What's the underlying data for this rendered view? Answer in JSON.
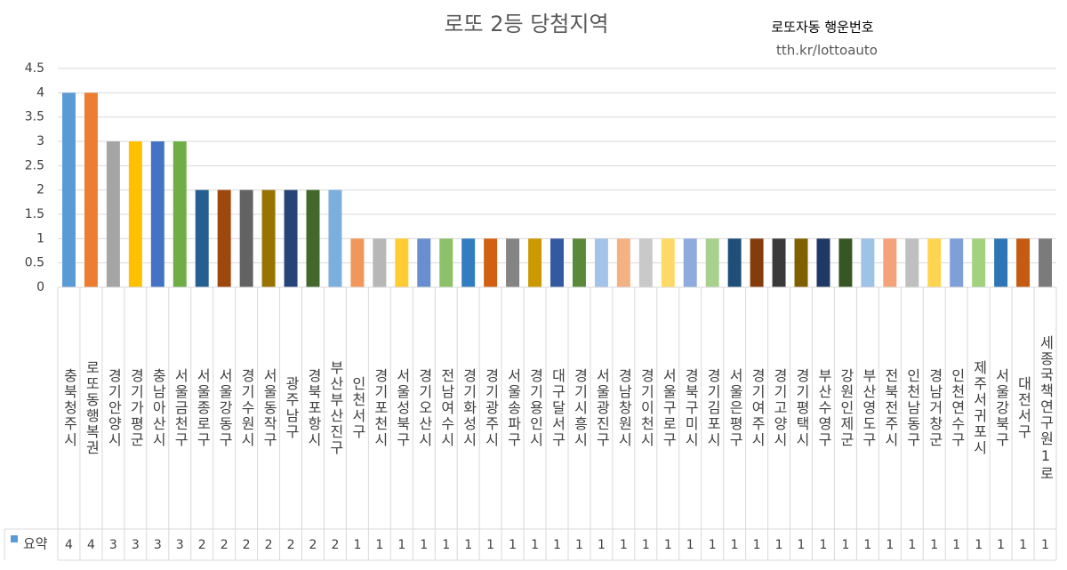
{
  "chart_data": {
    "type": "bar",
    "title": "로또 2등 당첨지역",
    "annotations": [
      "로또자동 행운번호",
      "tth.kr/lottoauto"
    ],
    "categories": [
      "충북청주시",
      "로또동행복권",
      "경기안양시",
      "경기가평군",
      "충남아산시",
      "서울금천구",
      "서울종로구",
      "서울강동구",
      "경기수원시",
      "서울동작구",
      "광주남구",
      "경북포항시",
      "부산부산진구",
      "인천서구",
      "경기포천시",
      "서울성북구",
      "경기오산시",
      "전남여수시",
      "경기화성시",
      "경기광주시",
      "서울송파구",
      "경기용인시",
      "대구달서구",
      "경기시흥시",
      "서울광진구",
      "경남창원시",
      "경기이천시",
      "서울구로구",
      "경북구미시",
      "경기김포시",
      "서울은평구",
      "경기여주시",
      "경기고양시",
      "경기평택시",
      "부산수영구",
      "강원인제군",
      "부산영도구",
      "전북전주시",
      "인천남동구",
      "경남거창군",
      "인천연수구",
      "제주서귀포시",
      "서울강북구",
      "대전서구",
      "세종국책연구원1로"
    ],
    "series": [
      {
        "name": "요약",
        "color": "#5b9bd5",
        "values": [
          4,
          4,
          3,
          3,
          3,
          3,
          2,
          2,
          2,
          2,
          2,
          2,
          2,
          1,
          1,
          1,
          1,
          1,
          1,
          1,
          1,
          1,
          1,
          1,
          1,
          1,
          1,
          1,
          1,
          1,
          1,
          1,
          1,
          1,
          1,
          1,
          1,
          1,
          1,
          1,
          1,
          1,
          1,
          1,
          1
        ]
      }
    ],
    "colors": [
      "#5b9bd5",
      "#ed7d31",
      "#a5a5a5",
      "#ffc000",
      "#4472c4",
      "#70ad47",
      "#255e91",
      "#9e480e",
      "#636363",
      "#997300",
      "#264478",
      "#43682b",
      "#7cafdd",
      "#f1975a",
      "#b7b7b7",
      "#ffcd33",
      "#698ed0",
      "#8cc168",
      "#327dc2",
      "#d26012",
      "#848484",
      "#cc9a00",
      "#335aa1",
      "#5a8a39",
      "#a3c4e8",
      "#f4b183",
      "#c9c9c9",
      "#ffd966",
      "#8faadc",
      "#a9d18e",
      "#1f4e79",
      "#843c0c",
      "#3a3a3a",
      "#7f6000",
      "#203864",
      "#375623",
      "#9dc3e6",
      "#f4a27a",
      "#bfbfbf",
      "#ffd54f",
      "#7f9fd9",
      "#a2d17f",
      "#2e75b6",
      "#c55a11",
      "#7b7b7b"
    ],
    "ylim": [
      0,
      4.5
    ],
    "yticks": [
      0,
      0.5,
      1,
      1.5,
      2,
      2.5,
      3,
      3.5,
      4,
      4.5
    ],
    "grid": true,
    "data_table": true
  }
}
